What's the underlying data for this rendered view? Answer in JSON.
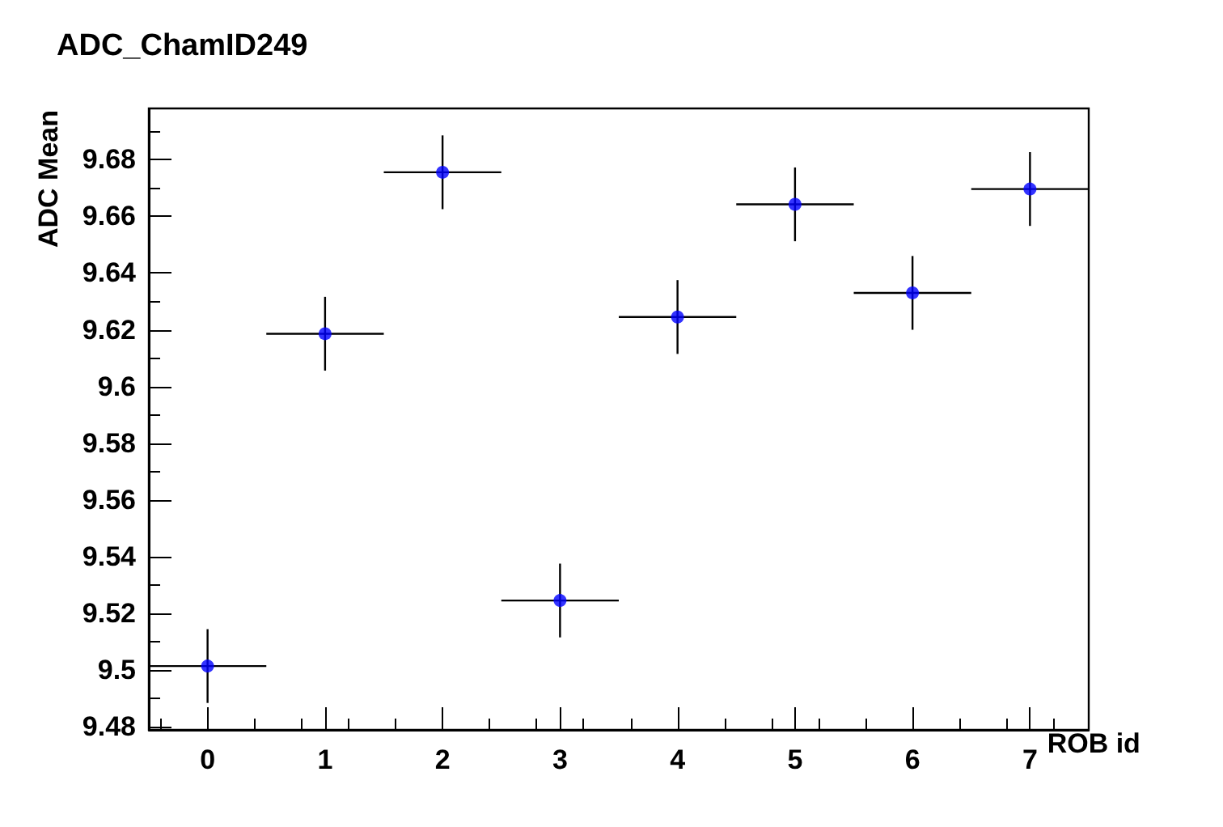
{
  "chart_data": {
    "type": "scatter",
    "title": "ADC_ChamID249",
    "xlabel": "ROB id",
    "ylabel": "ADC Mean",
    "x": [
      0,
      1,
      2,
      3,
      4,
      5,
      6,
      7
    ],
    "values": [
      9.5015,
      9.6186,
      9.6755,
      9.5246,
      9.6245,
      9.6642,
      9.633,
      9.6696
    ],
    "errors": [
      0.013,
      0.013,
      0.013,
      0.013,
      0.013,
      0.013,
      0.013,
      0.013
    ],
    "xerrors": [
      0.5,
      0.5,
      0.5,
      0.5,
      0.5,
      0.5,
      0.5,
      0.5
    ],
    "color": "#0000ff",
    "marker": "circle",
    "xlim": [
      -0.5,
      7.5
    ],
    "xticks": [
      0,
      1,
      2,
      3,
      4,
      5,
      6,
      7
    ],
    "ylim": [
      9.479,
      9.698
    ],
    "yticks": [
      9.48,
      9.5,
      9.52,
      9.54,
      9.56,
      9.58,
      9.6,
      9.62,
      9.64,
      9.66,
      9.68
    ],
    "grid": false
  }
}
